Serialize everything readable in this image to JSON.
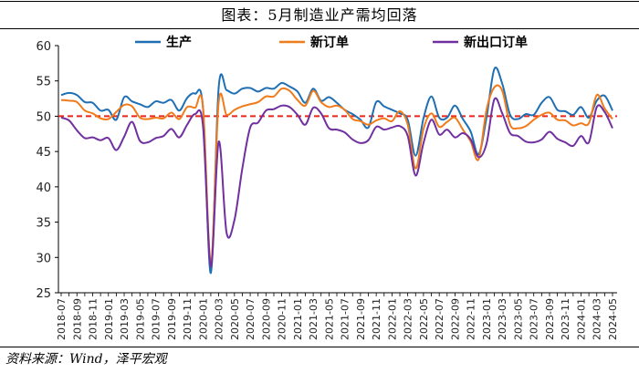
{
  "page": {
    "title": "图表：5月制造业产需均回落",
    "source": "资料来源：Wind，泽平宏观"
  },
  "chart_data": {
    "type": "line",
    "title": "图表：5月制造业产需均回落",
    "xlabel": "",
    "ylabel": "",
    "ylim": [
      25,
      60
    ],
    "yticks": [
      25,
      30,
      35,
      40,
      45,
      50,
      55,
      60
    ],
    "grid": false,
    "legend_position": "top",
    "reference_line": {
      "value": 50,
      "color": "#e8251b",
      "style": "dashed"
    },
    "x": [
      "2018-07",
      "2018-08",
      "2018-09",
      "2018-10",
      "2018-11",
      "2018-12",
      "2019-01",
      "2019-02",
      "2019-03",
      "2019-04",
      "2019-05",
      "2019-06",
      "2019-07",
      "2019-08",
      "2019-09",
      "2019-10",
      "2019-11",
      "2019-12",
      "2020-01",
      "2020-02",
      "2020-03",
      "2020-04",
      "2020-05",
      "2020-06",
      "2020-07",
      "2020-08",
      "2020-09",
      "2020-10",
      "2020-11",
      "2020-12",
      "2021-01",
      "2021-02",
      "2021-03",
      "2021-04",
      "2021-05",
      "2021-06",
      "2021-07",
      "2021-08",
      "2021-09",
      "2021-10",
      "2021-11",
      "2021-12",
      "2022-01",
      "2022-02",
      "2022-03",
      "2022-04",
      "2022-05",
      "2022-06",
      "2022-07",
      "2022-08",
      "2022-09",
      "2022-10",
      "2022-11",
      "2022-12",
      "2023-01",
      "2023-02",
      "2023-03",
      "2023-04",
      "2023-05",
      "2023-06",
      "2023-07",
      "2023-08",
      "2023-09",
      "2023-10",
      "2023-11",
      "2023-12",
      "2024-01",
      "2024-02",
      "2024-03",
      "2024-04",
      "2024-05"
    ],
    "xtick_labels": [
      "2018-07",
      "2018-09",
      "2018-11",
      "2019-01",
      "2019-03",
      "2019-05",
      "2019-07",
      "2019-09",
      "2019-11",
      "2020-01",
      "2020-03",
      "2020-05",
      "2020-07",
      "2020-09",
      "2020-11",
      "2021-01",
      "2021-03",
      "2021-05",
      "2021-07",
      "2021-09",
      "2021-11",
      "2022-01",
      "2022-03",
      "2022-05",
      "2022-07",
      "2022-09",
      "2022-11",
      "2023-01",
      "2023-03",
      "2023-05",
      "2023-07",
      "2023-09",
      "2023-11",
      "2024-01",
      "2024-03",
      "2024-05"
    ],
    "series": [
      {
        "name": "生产",
        "color": "#1f6fb4",
        "values": [
          53.0,
          53.3,
          53.0,
          52.0,
          51.9,
          50.8,
          50.9,
          49.5,
          52.7,
          52.1,
          51.7,
          51.3,
          52.1,
          51.9,
          52.3,
          50.8,
          52.6,
          53.2,
          51.3,
          27.8,
          54.1,
          53.7,
          53.2,
          53.9,
          54.0,
          53.5,
          54.0,
          53.9,
          54.7,
          54.2,
          53.5,
          51.9,
          53.9,
          52.2,
          52.7,
          51.9,
          50.9,
          50.3,
          49.5,
          48.4,
          52.0,
          51.4,
          50.9,
          50.4,
          49.5,
          44.4,
          49.7,
          52.8,
          49.8,
          49.8,
          51.5,
          49.6,
          47.8,
          44.6,
          49.8,
          56.7,
          54.6,
          50.2,
          49.6,
          50.3,
          50.2,
          51.9,
          52.7,
          50.9,
          50.7,
          50.2,
          51.3,
          49.8,
          52.2,
          52.9,
          50.8
        ]
      },
      {
        "name": "新订单",
        "color": "#f07b1b",
        "values": [
          52.3,
          52.2,
          52.0,
          50.8,
          50.4,
          49.7,
          49.6,
          50.6,
          51.6,
          51.4,
          49.8,
          49.6,
          49.8,
          49.7,
          50.5,
          49.6,
          51.3,
          51.2,
          51.4,
          29.3,
          52.0,
          50.2,
          50.9,
          51.4,
          51.7,
          52.0,
          52.8,
          52.8,
          53.9,
          53.6,
          52.3,
          51.5,
          53.6,
          52.0,
          51.3,
          51.5,
          50.9,
          49.6,
          49.3,
          48.8,
          49.4,
          49.7,
          49.3,
          50.7,
          48.8,
          42.6,
          48.2,
          50.4,
          48.5,
          49.2,
          49.8,
          48.1,
          46.4,
          43.9,
          50.9,
          54.1,
          53.6,
          48.8,
          48.3,
          48.6,
          49.5,
          50.2,
          50.5,
          49.5,
          49.4,
          48.7,
          49.0,
          49.0,
          53.0,
          51.1,
          49.6
        ]
      },
      {
        "name": "新出口订单",
        "color": "#7030a0",
        "values": [
          49.8,
          49.4,
          48.0,
          46.9,
          47.0,
          46.6,
          46.9,
          45.2,
          47.1,
          49.2,
          46.5,
          46.3,
          46.9,
          47.2,
          48.2,
          47.0,
          48.8,
          50.3,
          48.7,
          28.7,
          46.4,
          33.5,
          35.3,
          42.6,
          48.4,
          49.1,
          50.8,
          51.0,
          51.5,
          51.3,
          50.2,
          48.8,
          51.2,
          50.4,
          48.3,
          48.1,
          47.7,
          46.7,
          46.2,
          46.6,
          48.5,
          48.1,
          48.4,
          48.6,
          47.2,
          41.6,
          46.2,
          49.5,
          47.4,
          48.1,
          47.0,
          47.6,
          46.7,
          44.2,
          46.1,
          52.4,
          50.4,
          47.6,
          47.2,
          46.4,
          46.3,
          46.7,
          47.8,
          46.8,
          46.3,
          45.8,
          47.2,
          46.3,
          51.3,
          50.6,
          48.3
        ]
      }
    ]
  }
}
